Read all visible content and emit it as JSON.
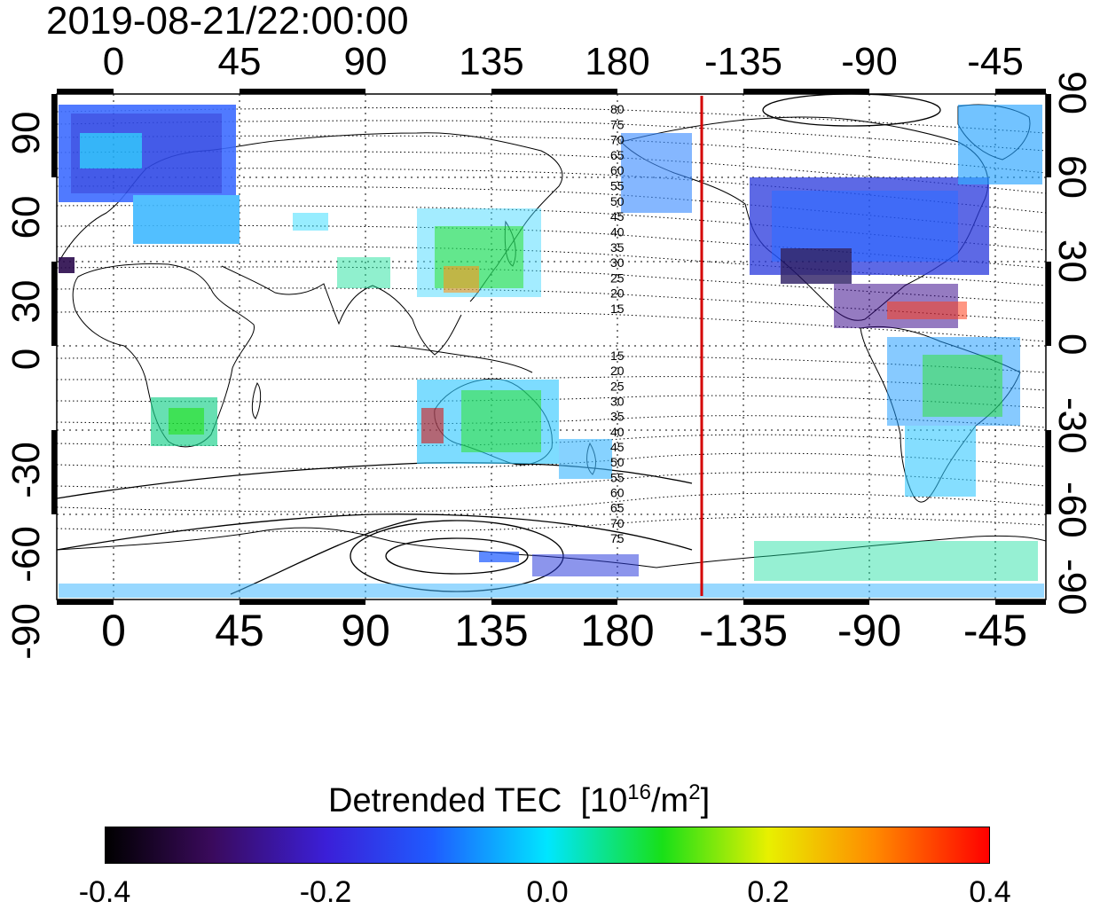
{
  "timestamp": "2019-08-21/22:00:00",
  "map": {
    "projection": "equirectangular",
    "lon_center": 157.5,
    "lon_ticks_top": [
      "0",
      "45",
      "90",
      "135",
      "180",
      "-135",
      "-90",
      "-45"
    ],
    "lon_ticks_bottom": [
      "0",
      "45",
      "90",
      "135",
      "180",
      "-135",
      "-90",
      "-45"
    ],
    "lat_ticks_left": [
      "90",
      "60",
      "30",
      "0",
      "-30",
      "-60",
      "-90"
    ],
    "lat_ticks_right": [
      "90",
      "60",
      "30",
      "0",
      "-30",
      "-60",
      "-90"
    ],
    "grid": true,
    "terminator_line": {
      "lon": -139,
      "color": "#d40000"
    },
    "contour_labels_north": [
      "80",
      "75",
      "70",
      "65",
      "60",
      "55",
      "50",
      "45",
      "40",
      "35",
      "30",
      "25",
      "20",
      "15"
    ],
    "contour_labels_south": [
      "15",
      "20",
      "25",
      "30",
      "35",
      "40",
      "45",
      "50",
      "55",
      "60",
      "65",
      "70",
      "75"
    ]
  },
  "colorbar": {
    "title": "Detrended TEC",
    "unit_base": "[10",
    "unit_exp": "16",
    "unit_mid": "/m",
    "unit_exp2": "2",
    "unit_end": "]",
    "ticks": [
      "-0.4",
      "-0.2",
      "0.0",
      "0.2",
      "0.4"
    ],
    "range": [
      -0.4,
      0.4
    ]
  }
}
